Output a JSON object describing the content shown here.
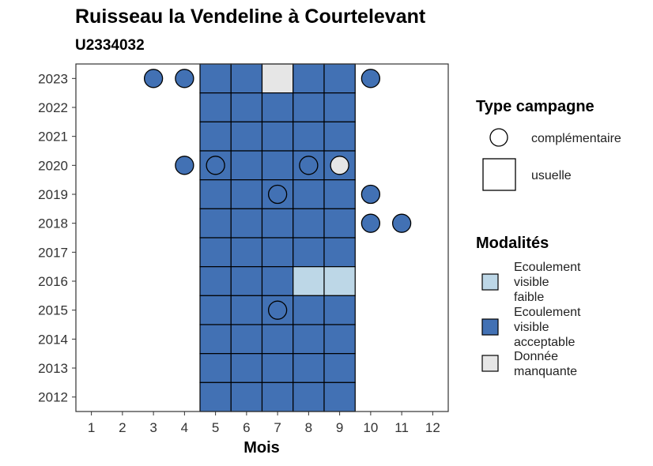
{
  "chart_data": {
    "type": "heatmap",
    "title": "Ruisseau la Vendeline à Courtelevant",
    "subtitle": "U2334032",
    "xlabel": "Mois",
    "ylabel": "",
    "x_ticks": [
      1,
      2,
      3,
      4,
      5,
      6,
      7,
      8,
      9,
      10,
      11,
      12
    ],
    "y_ticks": [
      2012,
      2013,
      2014,
      2015,
      2016,
      2017,
      2018,
      2019,
      2020,
      2021,
      2022,
      2023
    ],
    "xlim": [
      0.5,
      12.5
    ],
    "ylim": [
      2011.5,
      2023.5
    ],
    "grid": false,
    "colors": {
      "ecoulement_faible": "#BDD7E7",
      "ecoulement_acceptable": "#4271B4",
      "donnee_manquante": "#E6E6E6",
      "border": "#000000",
      "panel_border": "#333333"
    },
    "usuelle": [
      {
        "year": 2023,
        "months": [
          5,
          6,
          7,
          8,
          9
        ],
        "modalites": [
          "acceptable",
          "acceptable",
          "manquante",
          "acceptable",
          "acceptable"
        ]
      },
      {
        "year": 2022,
        "months": [
          5,
          6,
          7,
          8,
          9
        ],
        "modalites": [
          "acceptable",
          "acceptable",
          "acceptable",
          "acceptable",
          "acceptable"
        ]
      },
      {
        "year": 2021,
        "months": [
          5,
          6,
          7,
          8,
          9
        ],
        "modalites": [
          "acceptable",
          "acceptable",
          "acceptable",
          "acceptable",
          "acceptable"
        ]
      },
      {
        "year": 2020,
        "months": [
          5,
          6,
          7,
          8,
          9
        ],
        "modalites": [
          "acceptable",
          "acceptable",
          "acceptable",
          "acceptable",
          "acceptable"
        ]
      },
      {
        "year": 2019,
        "months": [
          5,
          6,
          7,
          8,
          9
        ],
        "modalites": [
          "acceptable",
          "acceptable",
          "acceptable",
          "acceptable",
          "acceptable"
        ]
      },
      {
        "year": 2018,
        "months": [
          5,
          6,
          7,
          8,
          9
        ],
        "modalites": [
          "acceptable",
          "acceptable",
          "acceptable",
          "acceptable",
          "acceptable"
        ]
      },
      {
        "year": 2017,
        "months": [
          5,
          6,
          7,
          8,
          9
        ],
        "modalites": [
          "acceptable",
          "acceptable",
          "acceptable",
          "acceptable",
          "acceptable"
        ]
      },
      {
        "year": 2016,
        "months": [
          5,
          6,
          7,
          8,
          9
        ],
        "modalites": [
          "acceptable",
          "acceptable",
          "acceptable",
          "faible",
          "faible"
        ]
      },
      {
        "year": 2015,
        "months": [
          5,
          6,
          7,
          8,
          9
        ],
        "modalites": [
          "acceptable",
          "acceptable",
          "acceptable",
          "acceptable",
          "acceptable"
        ]
      },
      {
        "year": 2014,
        "months": [
          5,
          6,
          7,
          8,
          9
        ],
        "modalites": [
          "acceptable",
          "acceptable",
          "acceptable",
          "acceptable",
          "acceptable"
        ]
      },
      {
        "year": 2013,
        "months": [
          5,
          6,
          7,
          8,
          9
        ],
        "modalites": [
          "acceptable",
          "acceptable",
          "acceptable",
          "acceptable",
          "acceptable"
        ]
      },
      {
        "year": 2012,
        "months": [
          5,
          6,
          7,
          8,
          9
        ],
        "modalites": [
          "acceptable",
          "acceptable",
          "acceptable",
          "acceptable",
          "acceptable"
        ]
      }
    ],
    "complementaire": [
      {
        "year": 2023,
        "month": 3,
        "modalite": "acceptable"
      },
      {
        "year": 2023,
        "month": 4,
        "modalite": "acceptable"
      },
      {
        "year": 2023,
        "month": 10,
        "modalite": "acceptable"
      },
      {
        "year": 2020,
        "month": 4,
        "modalite": "acceptable"
      },
      {
        "year": 2020,
        "month": 5,
        "modalite": "acceptable"
      },
      {
        "year": 2020,
        "month": 8,
        "modalite": "acceptable"
      },
      {
        "year": 2020,
        "month": 9,
        "modalite": "manquante"
      },
      {
        "year": 2019,
        "month": 7,
        "modalite": "acceptable"
      },
      {
        "year": 2019,
        "month": 10,
        "modalite": "acceptable"
      },
      {
        "year": 2018,
        "month": 10,
        "modalite": "acceptable"
      },
      {
        "year": 2018,
        "month": 11,
        "modalite": "acceptable"
      },
      {
        "year": 2015,
        "month": 7,
        "modalite": "acceptable"
      }
    ],
    "legend": {
      "placement": "right",
      "type_title": "Type campagne",
      "type_items": [
        "complémentaire",
        "usuelle"
      ],
      "mod_title": "Modalités",
      "mod_items": [
        {
          "key": "faible",
          "lines": [
            "Ecoulement",
            "visible",
            "faible"
          ]
        },
        {
          "key": "acceptable",
          "lines": [
            "Ecoulement",
            "visible",
            "acceptable"
          ]
        },
        {
          "key": "manquante",
          "lines": [
            "Donnée",
            "manquante"
          ]
        }
      ]
    }
  }
}
